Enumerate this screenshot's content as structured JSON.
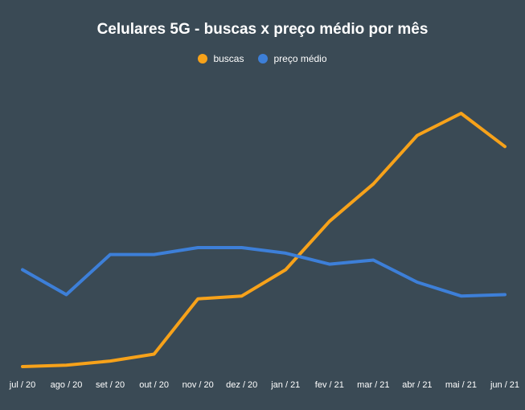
{
  "chart_data": {
    "type": "line",
    "title": "Celulares 5G - buscas x preço médio por mês",
    "categories": [
      "jul / 20",
      "ago / 20",
      "set / 20",
      "out / 20",
      "nov / 20",
      "dez / 20",
      "jan / 21",
      "fev / 21",
      "mar / 21",
      "abr / 21",
      "mai / 21",
      "jun / 21"
    ],
    "series": [
      {
        "name": "buscas",
        "color": "#f7a21a",
        "values": [
          0,
          1,
          4,
          9,
          49,
          51,
          70,
          105,
          132,
          167,
          183,
          159
        ]
      },
      {
        "name": "preço médio",
        "color": "#3d7fd8",
        "values": [
          70,
          52,
          81,
          81,
          86,
          86,
          82,
          74,
          77,
          61,
          51,
          52
        ]
      }
    ],
    "legend_position": "top",
    "grid": false
  }
}
